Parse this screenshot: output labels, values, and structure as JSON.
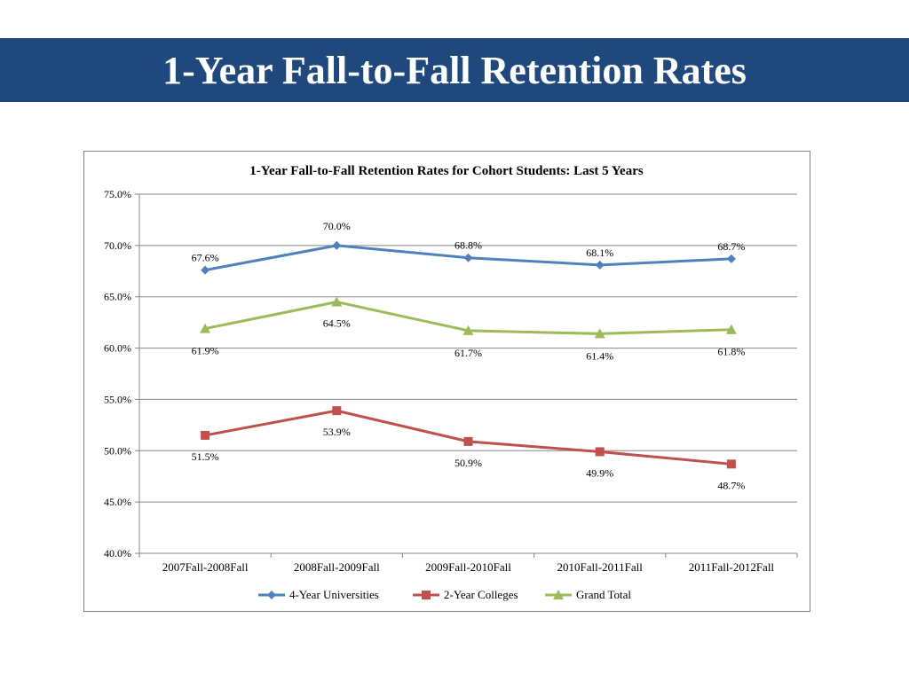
{
  "slide": {
    "title": "1-Year Fall-to-Fall Retention Rates"
  },
  "chart_data": {
    "type": "line",
    "title": "1-Year Fall-to-Fall Retention Rates for Cohort Students: Last 5 Years",
    "xlabel": "",
    "ylabel": "",
    "ylim": [
      40,
      75
    ],
    "y_ticks": [
      "40.0%",
      "45.0%",
      "50.0%",
      "55.0%",
      "60.0%",
      "65.0%",
      "70.0%",
      "75.0%"
    ],
    "categories": [
      "2007Fall-2008Fall",
      "2008Fall-2009Fall",
      "2009Fall-2010Fall",
      "2010Fall-2011Fall",
      "2011Fall-2012Fall"
    ],
    "grid": true,
    "legend_position": "bottom",
    "series": [
      {
        "name": "4-Year Universities",
        "color": "#4f81bd",
        "marker": "diamond",
        "values": [
          67.6,
          70.0,
          68.8,
          68.1,
          68.7
        ],
        "labels": [
          "67.6%",
          "70.0%",
          "68.8%",
          "68.1%",
          "68.7%"
        ]
      },
      {
        "name": "2-Year Colleges",
        "color": "#c0504d",
        "marker": "square",
        "values": [
          51.5,
          53.9,
          50.9,
          49.9,
          48.7
        ],
        "labels": [
          "51.5%",
          "53.9%",
          "50.9%",
          "49.9%",
          "48.7%"
        ]
      },
      {
        "name": "Grand Total",
        "color": "#9bbb59",
        "marker": "triangle",
        "values": [
          61.9,
          64.5,
          61.7,
          61.4,
          61.8
        ],
        "labels": [
          "61.9%",
          "64.5%",
          "61.7%",
          "61.4%",
          "61.8%"
        ]
      }
    ]
  }
}
